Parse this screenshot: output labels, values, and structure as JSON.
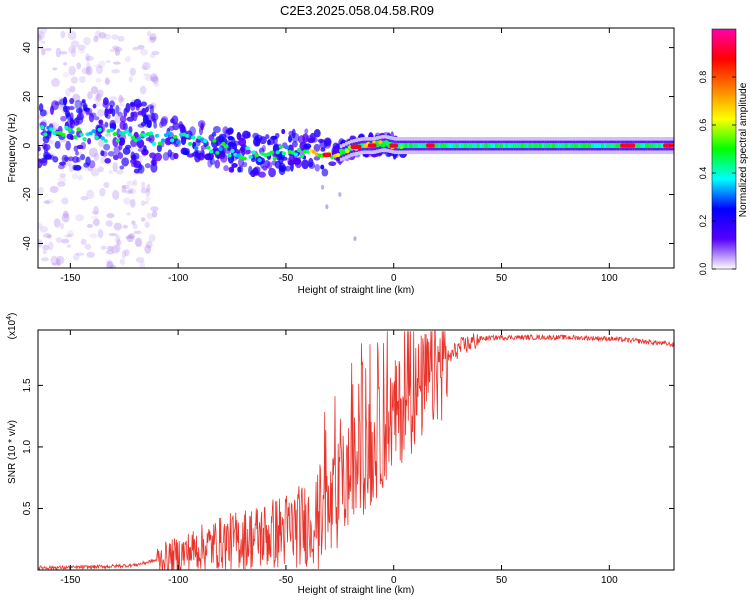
{
  "title": "C2E3.2025.058.04.58.R09",
  "chart_data": [
    {
      "type": "heatmap",
      "xlabel": "Height of straight line (km)",
      "ylabel": "Frequency (Hz)",
      "xlim": [
        -165,
        130
      ],
      "ylim": [
        -50,
        48
      ],
      "x_ticks": [
        -150,
        -100,
        -50,
        0,
        50,
        100
      ],
      "y_ticks": [
        -40,
        -20,
        0,
        20,
        40
      ],
      "colorbar": {
        "label": "Normalized spectral amplitude",
        "range": [
          0,
          1
        ],
        "ticks": [
          "0.0",
          "0.2",
          "0.4",
          "0.6",
          "0.8"
        ],
        "colormap": [
          "#ffffff",
          "#5500ff",
          "#0000ff",
          "#00ffff",
          "#00ff00",
          "#ffff00",
          "#ff8000",
          "#ff0000",
          "#ff00aa"
        ]
      },
      "ridge": {
        "name": "Doppler frequency trace",
        "x": [
          -165,
          -150,
          -130,
          -110,
          -100,
          -90,
          -80,
          -70,
          -60,
          -50,
          -45,
          -40,
          -35,
          -30,
          -25,
          -20,
          -15,
          -10,
          -5,
          0,
          10,
          20,
          40,
          60,
          80,
          100,
          130
        ],
        "y": [
          5,
          5,
          4,
          3,
          3,
          1,
          -1,
          -3,
          -4,
          -2,
          -3,
          -2,
          -3,
          -4,
          -3,
          -1,
          0,
          0,
          1,
          0,
          0,
          0,
          0,
          0,
          0,
          0,
          0
        ]
      },
      "spread_note_x": [
        -165,
        -110
      ],
      "grid": false
    },
    {
      "type": "line",
      "xlabel": "Height of straight line (km)",
      "ylabel": "SNR (10 * v/v)",
      "y_multiplier_label": "(x10",
      "y_multiplier_exp": "4",
      "xlim": [
        -165,
        130
      ],
      "ylim": [
        0,
        1.95
      ],
      "x_ticks": [
        -150,
        -100,
        -50,
        0,
        50,
        100
      ],
      "y_ticks": [
        "0.5",
        "1.0",
        "1.5"
      ],
      "color": "#e8342c",
      "series": [
        {
          "x": [
            -165,
            -150,
            -130,
            -120,
            -110,
            -100,
            -90,
            -80,
            -70,
            -60,
            -50,
            -40,
            -30,
            -25,
            -20,
            -15,
            -10,
            -5,
            0,
            10,
            20,
            30,
            40,
            50,
            60,
            80,
            100,
            120,
            130
          ],
          "y": [
            0.02,
            0.02,
            0.03,
            0.04,
            0.08,
            0.12,
            0.18,
            0.22,
            0.25,
            0.28,
            0.32,
            0.38,
            0.45,
            0.62,
            0.8,
            0.88,
            0.95,
            1.1,
            1.25,
            1.42,
            1.62,
            1.8,
            1.88,
            1.89,
            1.89,
            1.89,
            1.88,
            1.85,
            1.83
          ]
        }
      ],
      "grid": false
    }
  ]
}
